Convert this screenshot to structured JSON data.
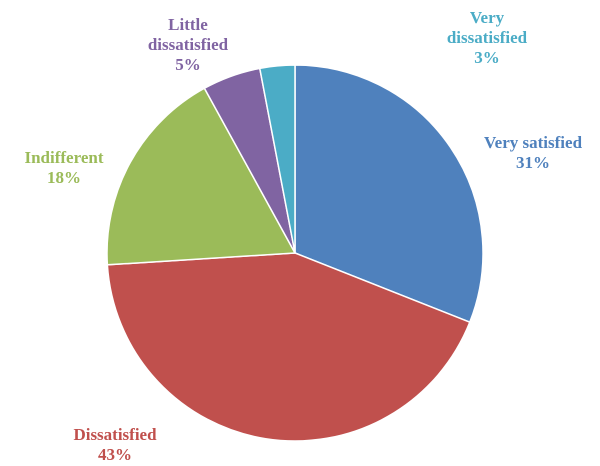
{
  "chart_data": {
    "type": "pie",
    "title": "",
    "slices": [
      {
        "label": "Very satisfied",
        "value": 31,
        "pct_label": "31%",
        "color": "#4F81BD"
      },
      {
        "label": "Dissatisfied",
        "value": 43,
        "pct_label": "43%",
        "color": "#C0504D"
      },
      {
        "label": "Indifferent",
        "value": 18,
        "pct_label": "18%",
        "color": "#9BBB59"
      },
      {
        "label": "Little dissatisfied",
        "label_lines": [
          "Little",
          "dissatisfied"
        ],
        "value": 5,
        "pct_label": "5%",
        "color": "#8064A2"
      },
      {
        "label": "Very dissatisfied",
        "label_lines": [
          "Very",
          "dissatisfied"
        ],
        "value": 3,
        "pct_label": "3%",
        "color": "#4BACC6"
      }
    ],
    "start_angle_deg": 0,
    "direction": "clockwise",
    "legend": "none",
    "data_labels": "outside"
  }
}
